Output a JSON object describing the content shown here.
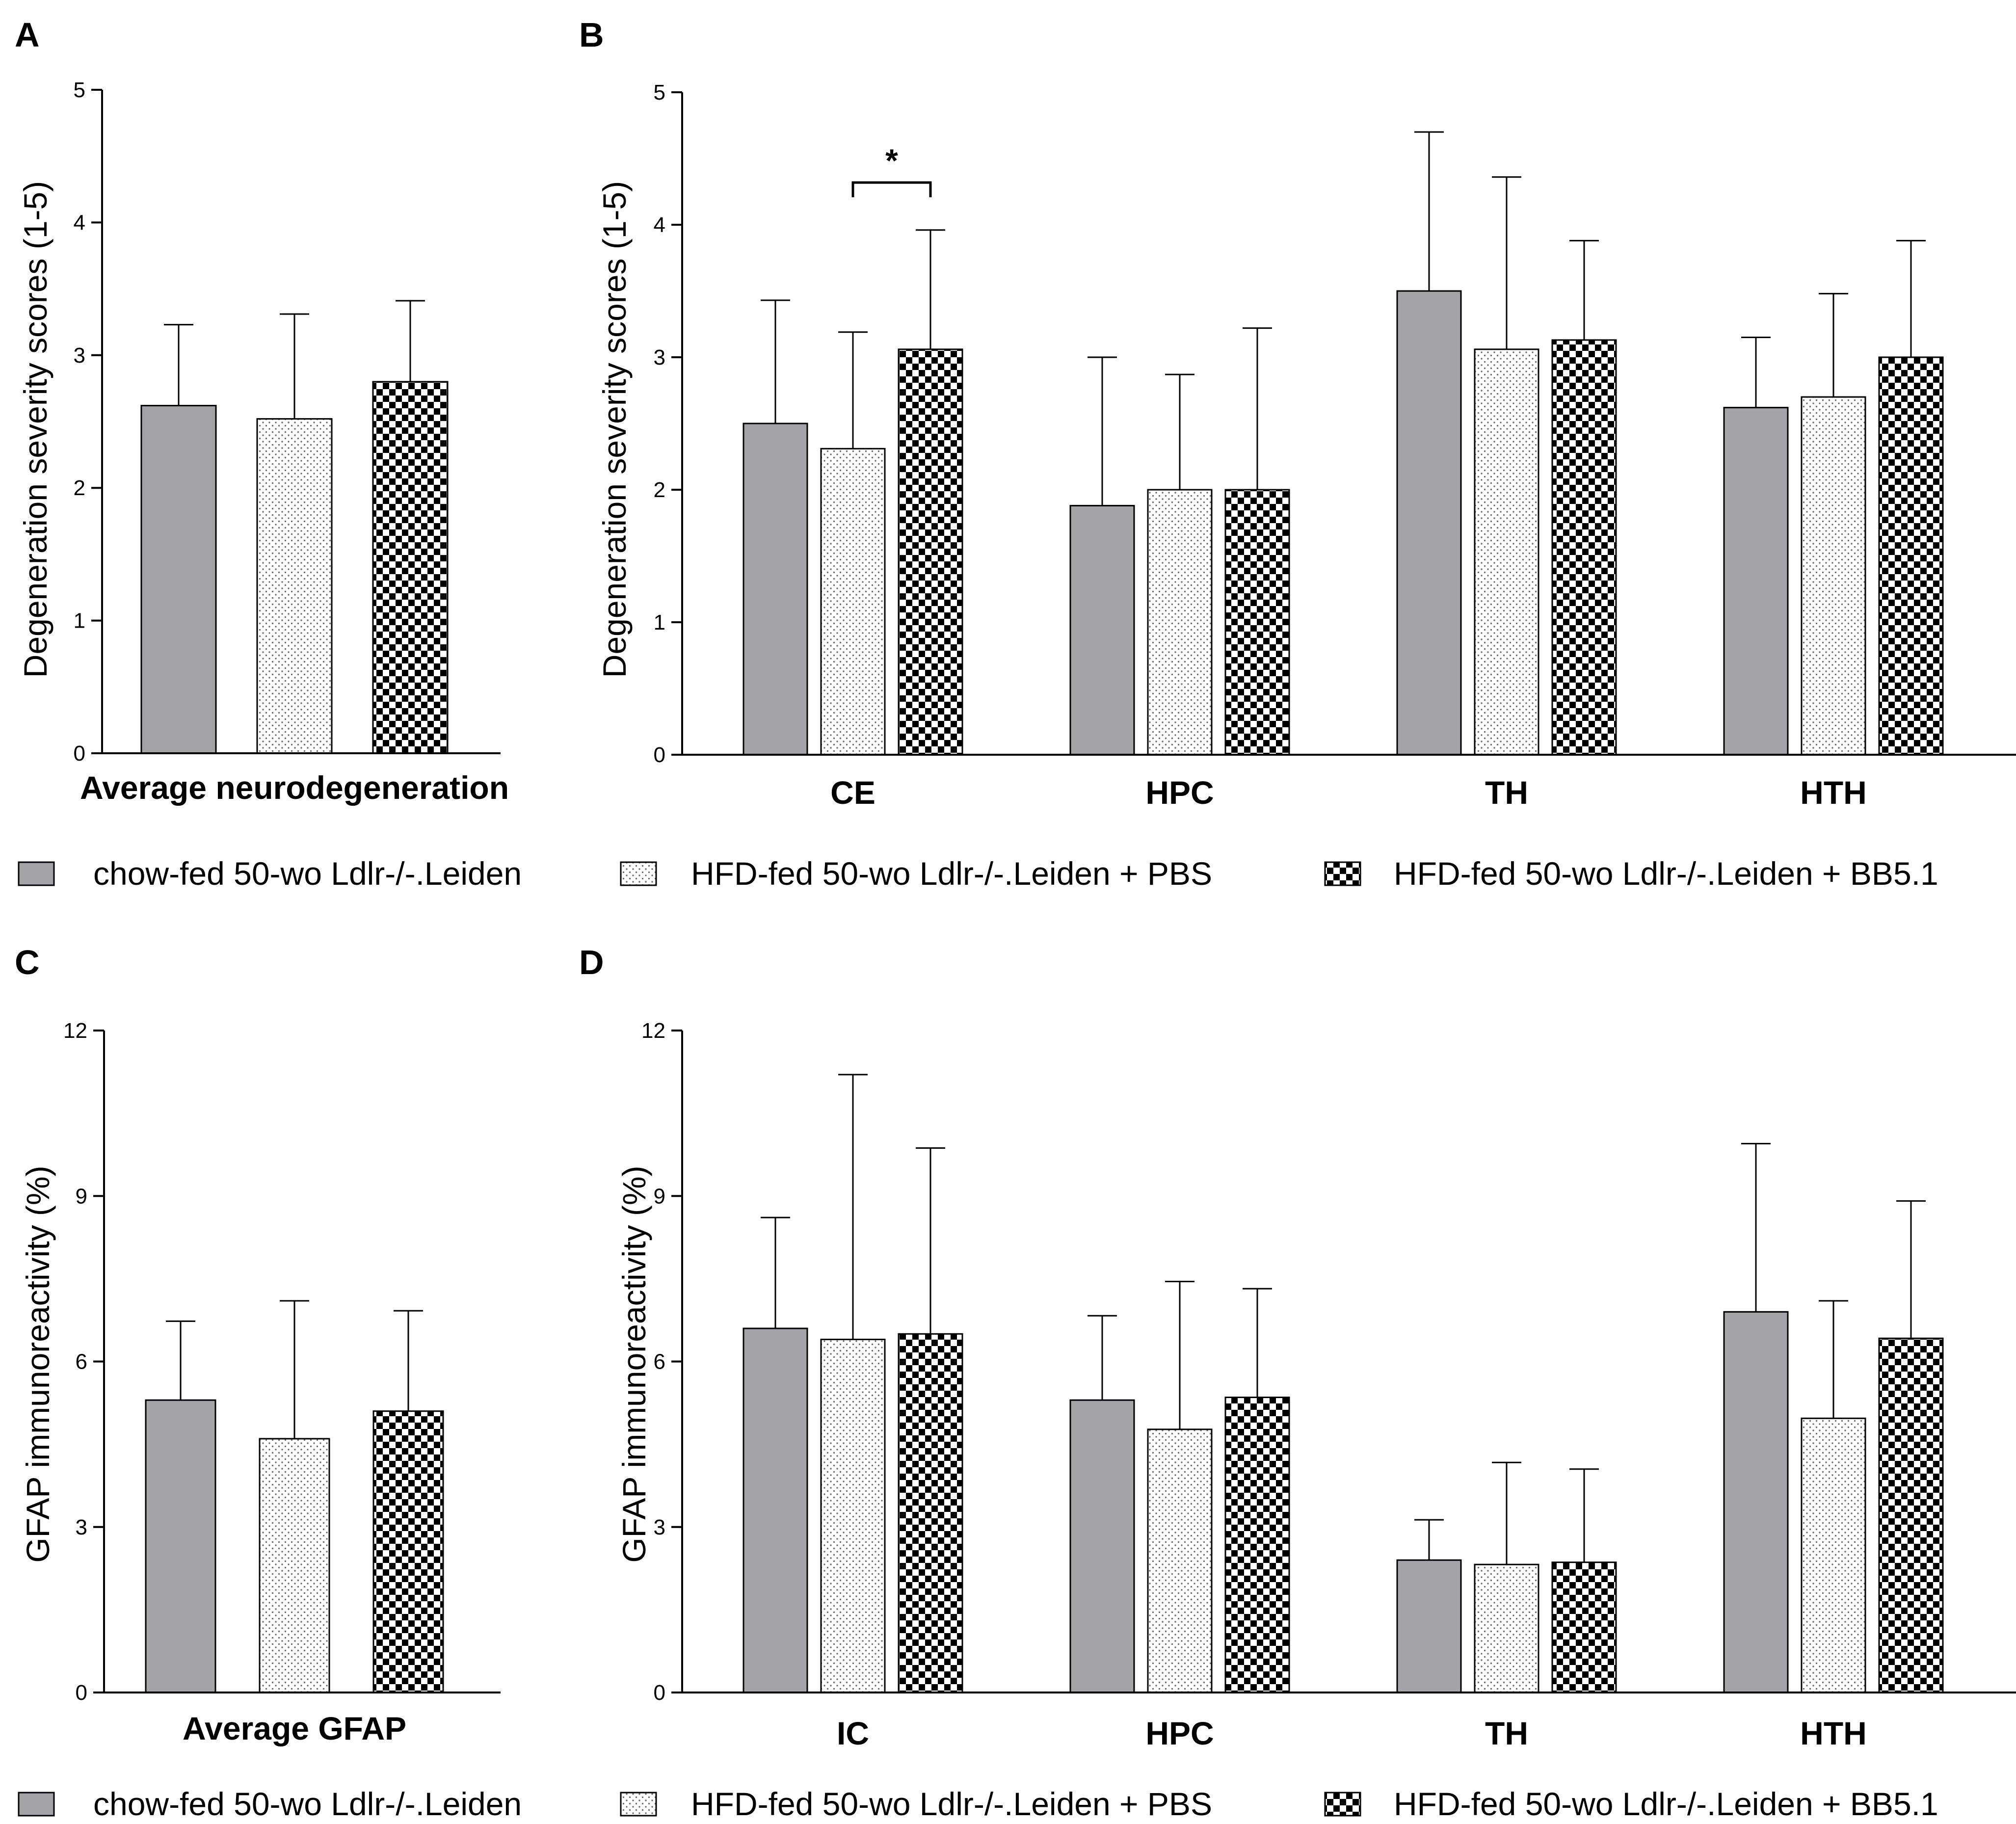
{
  "colors": {
    "chow": "#a3a3a8",
    "pbs_bg": "#ffffff",
    "pbs_dot": "#6e6e6e",
    "bb5_dark": "#000000",
    "bb5_light": "#ffffff",
    "axis": "#000000"
  },
  "groups": [
    {
      "key": "chow",
      "name": "chow-fed 50-wo Ldlr-/-.Leiden"
    },
    {
      "key": "pbs",
      "name": "HFD-fed 50-wo Ldlr-/-.Leiden + PBS"
    },
    {
      "key": "bb5",
      "name": "HFD-fed 50-wo Ldlr-/-.Leiden + BB5.1"
    }
  ],
  "legend": [
    {
      "key": "chow",
      "label": "chow-fed 50-wo Ldlr-/-.Leiden"
    },
    {
      "key": "pbs",
      "label": "HFD-fed 50-wo Ldlr-/-.Leiden + PBS"
    },
    {
      "key": "bb5",
      "label": "HFD-fed 50-wo Ldlr-/-.Leiden + BB5.1"
    }
  ],
  "chart_data": [
    {
      "panel": "A",
      "type": "bar",
      "title": "",
      "ylabel": "Degeneration severity scores (1-5)",
      "xlabel": "Average neurodegeneration",
      "ylim": [
        0,
        5
      ],
      "yticks": [
        0,
        1,
        2,
        3,
        4,
        5
      ],
      "categories": [
        ""
      ],
      "series": [
        {
          "name": "chow-fed 50-wo Ldlr-/-.Leiden",
          "values": [
            2.62
          ],
          "errors": [
            0.61
          ]
        },
        {
          "name": "HFD-fed 50-wo Ldlr-/-.Leiden + PBS",
          "values": [
            2.52
          ],
          "errors": [
            0.79
          ]
        },
        {
          "name": "HFD-fed 50-wo Ldlr-/-.Leiden + BB5.1",
          "values": [
            2.8
          ],
          "errors": [
            0.61
          ]
        }
      ]
    },
    {
      "panel": "B",
      "type": "bar",
      "title": "",
      "ylabel": "Degeneration severity scores (1-5)",
      "xlabel": "",
      "ylim": [
        0,
        5
      ],
      "yticks": [
        0,
        1,
        2,
        3,
        4,
        5
      ],
      "categories": [
        "CE",
        "HPC",
        "TH",
        "HTH"
      ],
      "series": [
        {
          "name": "chow-fed 50-wo Ldlr-/-.Leiden",
          "values": [
            2.5,
            1.88,
            3.5,
            2.62
          ],
          "errors": [
            0.93,
            1.12,
            1.2,
            0.53
          ]
        },
        {
          "name": "HFD-fed 50-wo Ldlr-/-.Leiden + PBS",
          "values": [
            2.31,
            2.0,
            3.06,
            2.7
          ],
          "errors": [
            0.88,
            0.87,
            1.3,
            0.78
          ]
        },
        {
          "name": "HFD-fed 50-wo Ldlr-/-.Leiden + BB5.1",
          "values": [
            3.06,
            2.0,
            3.13,
            3.0
          ],
          "errors": [
            0.9,
            1.22,
            0.75,
            0.88
          ]
        }
      ],
      "significance": [
        {
          "category": 0,
          "from": 1,
          "to": 2,
          "label": "*"
        }
      ]
    },
    {
      "panel": "C",
      "type": "bar",
      "title": "",
      "ylabel": "GFAP immunoreactivity (%)",
      "xlabel": "Average GFAP",
      "ylim": [
        0,
        12
      ],
      "yticks": [
        0,
        3,
        6,
        9,
        12
      ],
      "categories": [
        ""
      ],
      "series": [
        {
          "name": "chow-fed 50-wo Ldlr-/-.Leiden",
          "values": [
            5.3
          ],
          "errors": [
            1.43
          ]
        },
        {
          "name": "HFD-fed 50-wo Ldlr-/-.Leiden + PBS",
          "values": [
            4.6
          ],
          "errors": [
            2.5
          ]
        },
        {
          "name": "HFD-fed 50-wo Ldlr-/-.Leiden + BB5.1",
          "values": [
            5.1
          ],
          "errors": [
            1.82
          ]
        }
      ]
    },
    {
      "panel": "D",
      "type": "bar",
      "title": "",
      "ylabel": "GFAP immunoreactivity (%)",
      "xlabel": "",
      "ylim": [
        0,
        12
      ],
      "yticks": [
        0,
        3,
        6,
        9,
        12
      ],
      "categories": [
        "IC",
        "HPC",
        "TH",
        "HTH"
      ],
      "series": [
        {
          "name": "chow-fed 50-wo Ldlr-/-.Leiden",
          "values": [
            6.6,
            5.3,
            2.4,
            6.9
          ],
          "errors": [
            2.01,
            1.53,
            0.73,
            3.05
          ]
        },
        {
          "name": "HFD-fed 50-wo Ldlr-/-.Leiden + PBS",
          "values": [
            6.4,
            4.77,
            2.32,
            4.97
          ],
          "errors": [
            4.8,
            2.68,
            1.85,
            2.13
          ]
        },
        {
          "name": "HFD-fed 50-wo Ldlr-/-.Leiden + BB5.1",
          "values": [
            6.5,
            5.35,
            2.36,
            6.42
          ],
          "errors": [
            3.37,
            1.97,
            1.69,
            2.49
          ]
        }
      ]
    }
  ]
}
